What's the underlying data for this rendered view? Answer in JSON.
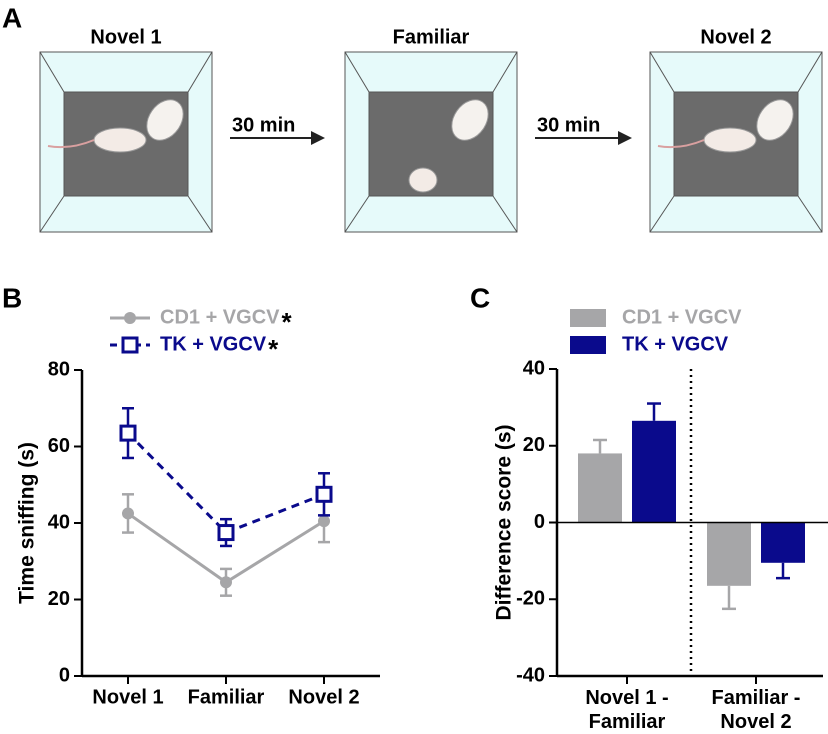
{
  "diagram": {
    "panel": "A",
    "boxes": [
      "Novel 1",
      "Familiar",
      "Novel 2"
    ],
    "arrows": [
      "30 min",
      "30 min"
    ]
  },
  "chart_data": [
    {
      "type": "line",
      "panel": "B",
      "y_label": "Time sniffing (s)",
      "categories": [
        "Novel 1",
        "Familiar",
        "Novel 2"
      ],
      "ylim": [
        0,
        80
      ],
      "yticks": [
        0,
        20,
        40,
        60,
        80
      ],
      "series": [
        {
          "name": "CD1 + VGCV",
          "color": "#a6a6a8",
          "marker": "circle",
          "dashed": false,
          "annotation": "*",
          "values": [
            42.5,
            24.5,
            40.5
          ],
          "errors": [
            5,
            3.5,
            5.5
          ]
        },
        {
          "name": "TK + VGCV",
          "color": "#0a0a8c",
          "marker": "square",
          "dashed": true,
          "annotation": "*",
          "values": [
            63.5,
            37.5,
            47.5
          ],
          "errors": [
            6.5,
            3.5,
            5.5
          ]
        }
      ]
    },
    {
      "type": "bar",
      "panel": "C",
      "y_label": "Difference score (s)",
      "categories": [
        "Novel 1 - Familiar",
        "Familiar - Novel 2"
      ],
      "ylim": [
        -40,
        40
      ],
      "yticks": [
        -40,
        -20,
        0,
        20,
        40
      ],
      "series": [
        {
          "name": "CD1 + VGCV",
          "color": "#a6a6a8",
          "values": [
            18,
            -16.5
          ],
          "errors": [
            3.5,
            6
          ]
        },
        {
          "name": "TK + VGCV",
          "color": "#0a0a8c",
          "values": [
            26.5,
            -10.5
          ],
          "errors": [
            4.5,
            4
          ]
        }
      ]
    }
  ]
}
